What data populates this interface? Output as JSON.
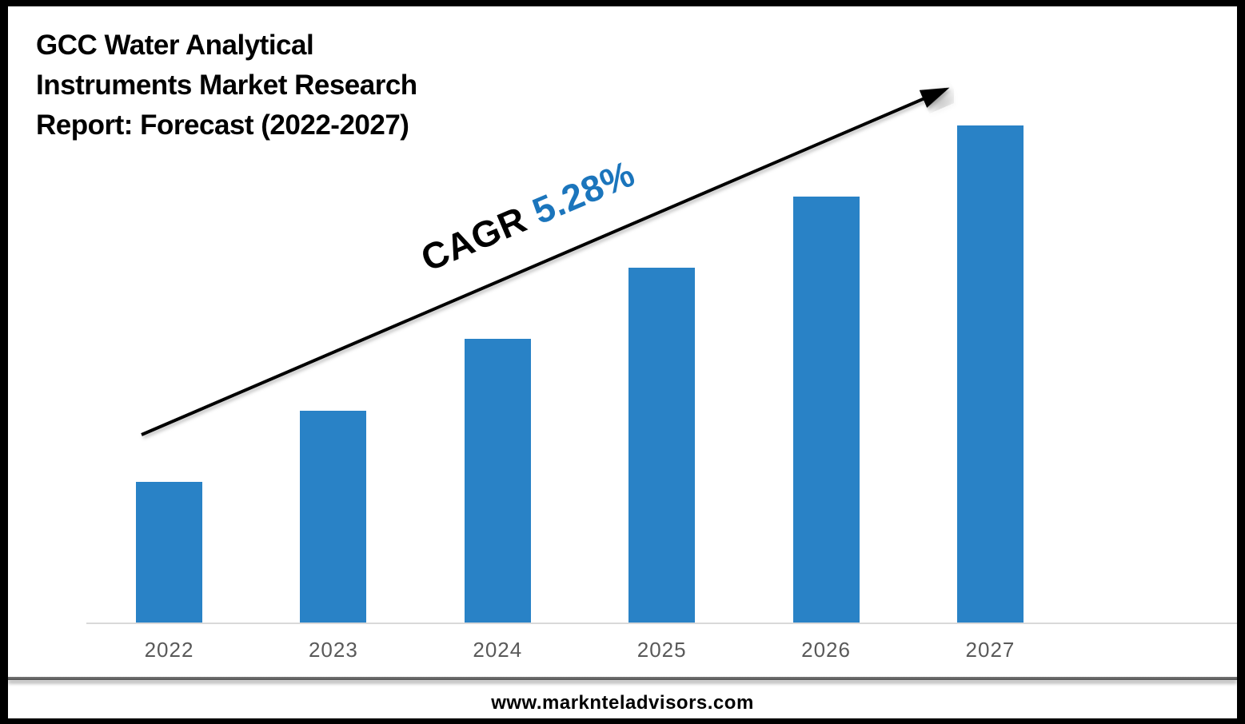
{
  "title": {
    "lines": [
      "GCC Water Analytical",
      "Instruments Market Research",
      "Report: Forecast (2022-2027)"
    ]
  },
  "annotation": {
    "prefix": "CAGR",
    "value": "5.28%"
  },
  "footer": {
    "website": "www.marknteladvisors.com"
  },
  "colors": {
    "bar": "#2982C6",
    "accent_blue": "#1B75BC",
    "axis": "#D9D9D9",
    "tick_label": "#595959",
    "arrow": "#000000",
    "border": "#000000"
  },
  "chart_data": {
    "type": "bar",
    "title": "GCC Water Analytical Instruments Market Research Report: Forecast (2022-2027)",
    "categories": [
      "2022",
      "2023",
      "2024",
      "2025",
      "2026",
      "2027"
    ],
    "values": [
      2,
      3,
      4,
      5,
      6,
      7
    ],
    "value_scale": "relative units (no y-axis shown; bar heights grow linearly)",
    "annotations": [
      "CAGR 5.28%"
    ],
    "xlabel": "",
    "ylabel": "",
    "ylim": [
      0,
      7.5
    ],
    "grid": false,
    "legend": false,
    "bar_color": "#2982C6"
  }
}
